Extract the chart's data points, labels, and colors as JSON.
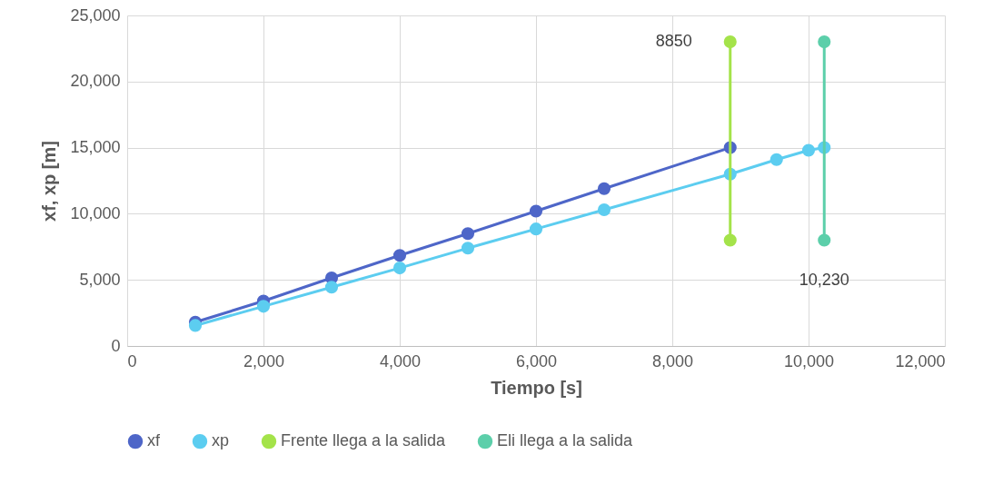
{
  "chart_data": {
    "type": "line",
    "xlabel": "Tiempo [s]",
    "ylabel": "xf, xp [m]",
    "xlim": [
      0,
      12000
    ],
    "xticks": [
      0,
      {
        "value": 2000,
        "label": "2,000"
      },
      {
        "value": 4000,
        "label": "4,000"
      },
      {
        "value": 6000,
        "label": "6,000"
      },
      {
        "value": 8000,
        "label": "8,000"
      },
      {
        "value": 10000,
        "label": "10,000"
      },
      {
        "value": 12000,
        "label": "12,000"
      }
    ],
    "ylim": [
      0,
      25000
    ],
    "yticks": [
      0,
      {
        "value": 5000,
        "label": "5,000"
      },
      {
        "value": 10000,
        "label": "10,000"
      },
      {
        "value": 15000,
        "label": "15,000"
      },
      {
        "value": 20000,
        "label": "20,000"
      },
      {
        "value": 25000,
        "label": "25,000"
      }
    ],
    "grid": true,
    "legend": "bottom",
    "marker": "circle",
    "line_style": "solid",
    "series": [
      {
        "name": "xf",
        "color": "#4e66c8",
        "x": [
          1000,
          2000,
          3000,
          4000,
          5000,
          6000,
          7000,
          8850
        ],
        "values": [
          1800,
          3400,
          5150,
          6850,
          8500,
          10200,
          11900,
          15000
        ]
      },
      {
        "name": "xp",
        "color": "#5ccdf0",
        "x": [
          1000,
          2000,
          3000,
          4000,
          5000,
          6000,
          7000,
          8850,
          9530,
          10000,
          10230
        ],
        "values": [
          1550,
          3000,
          4450,
          5900,
          7400,
          8850,
          10300,
          13000,
          14100,
          14800,
          15000
        ]
      },
      {
        "name": "Frente llega a la salida",
        "color": "#a4e34a",
        "x": [
          8850,
          8850
        ],
        "values": [
          23000,
          8000
        ]
      },
      {
        "name": "Eli llega a la salida",
        "color": "#5ccfaa",
        "x": [
          10230,
          10230
        ],
        "values": [
          23000,
          8000
        ]
      }
    ],
    "annotations": [
      {
        "text": "8850",
        "x": 8850,
        "y": 23000
      },
      {
        "text": "10,230",
        "x": 10230,
        "y": 8000
      }
    ]
  }
}
